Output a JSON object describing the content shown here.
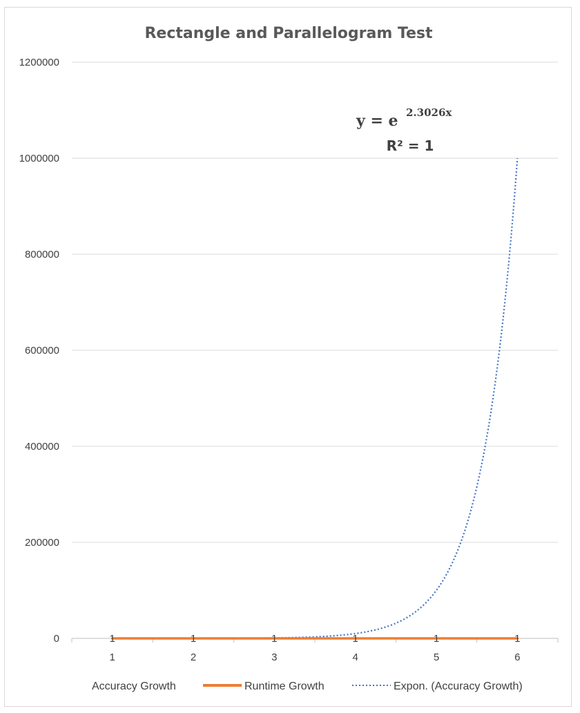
{
  "chart_data": {
    "type": "line",
    "title": "Rectangle and Parallelogram Test",
    "categories": [
      "1",
      "2",
      "3",
      "4",
      "5",
      "6"
    ],
    "ylim": [
      0,
      1200000
    ],
    "yticks": [
      "0",
      "200000",
      "400000",
      "600000",
      "800000",
      "1000000",
      "1200000"
    ],
    "ytick_values": [
      0,
      200000,
      400000,
      600000,
      800000,
      1000000,
      1200000
    ],
    "grid": true,
    "legend_position": "bottom",
    "series": [
      {
        "name": "Accuracy Growth",
        "values": [
          10,
          100,
          1000,
          10000,
          100000,
          1000000
        ],
        "color": "#4472c4"
      },
      {
        "name": "Runtime Growth",
        "values": [
          1,
          1,
          1,
          1,
          1,
          1
        ],
        "data_labels": [
          "1",
          "1",
          "1",
          "1",
          "1",
          "1"
        ],
        "color": "#ed7d31"
      }
    ],
    "trendline": {
      "name": "Expon. (Accuracy Growth)",
      "type": "exponential",
      "coefficient": 2.3026,
      "equation_prefix": "y = e",
      "equation_exponent": "2.3026x",
      "r_squared_label": "R² = 1",
      "color": "#4472c4"
    }
  }
}
